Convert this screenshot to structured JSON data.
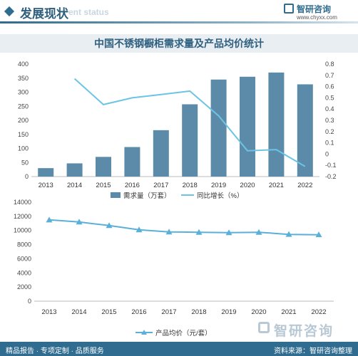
{
  "header": {
    "title": "发展现状",
    "subtitle": "ent status",
    "logo_name": "智研咨询",
    "logo_url": "www.chyxx.com"
  },
  "colors": {
    "bar": "#5b8ba8",
    "growth_line": "#6cc4e4",
    "price_line": "#5ab0d8",
    "brand": "#2f6c8f"
  },
  "chart_data": [
    {
      "type": "bar",
      "title": "中国不锈钢橱柜需求量及产品均价统计",
      "categories": [
        "2013",
        "2014",
        "2015",
        "2016",
        "2017",
        "2018",
        "2019",
        "2020",
        "2021",
        "2022"
      ],
      "series": [
        {
          "name": "需求量（万套）",
          "type": "bar",
          "axis": "left",
          "values": [
            30,
            47,
            70,
            105,
            165,
            257,
            345,
            355,
            370,
            328
          ]
        },
        {
          "name": "同比增长（%）",
          "type": "line",
          "axis": "right",
          "values": [
            null,
            0.67,
            0.44,
            0.5,
            0.53,
            0.56,
            0.34,
            0.03,
            0.04,
            -0.11
          ]
        }
      ],
      "ylim_left": [
        0,
        400
      ],
      "yticks_left": [
        0,
        50,
        100,
        150,
        200,
        250,
        300,
        350,
        400
      ],
      "ylim_right": [
        -0.2,
        0.8
      ],
      "yticks_right": [
        "-0.2",
        "-0.1",
        "0",
        "0.1",
        "0.2",
        "0.3",
        "0.4",
        "0.5",
        "0.6",
        "0.7",
        "0.8"
      ],
      "legend_position": "bottom",
      "grid": false
    },
    {
      "type": "line",
      "categories": [
        "2013",
        "2014",
        "2015",
        "2016",
        "2017",
        "2018",
        "2019",
        "2020",
        "2021",
        "2022"
      ],
      "series": [
        {
          "name": "产品均价（元/套）",
          "values": [
            11500,
            11200,
            10700,
            10100,
            9800,
            9750,
            9700,
            9750,
            9450,
            9400
          ]
        }
      ],
      "ylim": [
        0,
        14000
      ],
      "yticks": [
        0,
        2000,
        4000,
        6000,
        8000,
        10000,
        12000,
        14000
      ],
      "legend_position": "bottom",
      "grid": false
    }
  ],
  "footer": {
    "left": "精品报告 · 专项定制 · 品质服务",
    "right": "资料来源：智研咨询整理"
  },
  "watermark": "智研咨询"
}
